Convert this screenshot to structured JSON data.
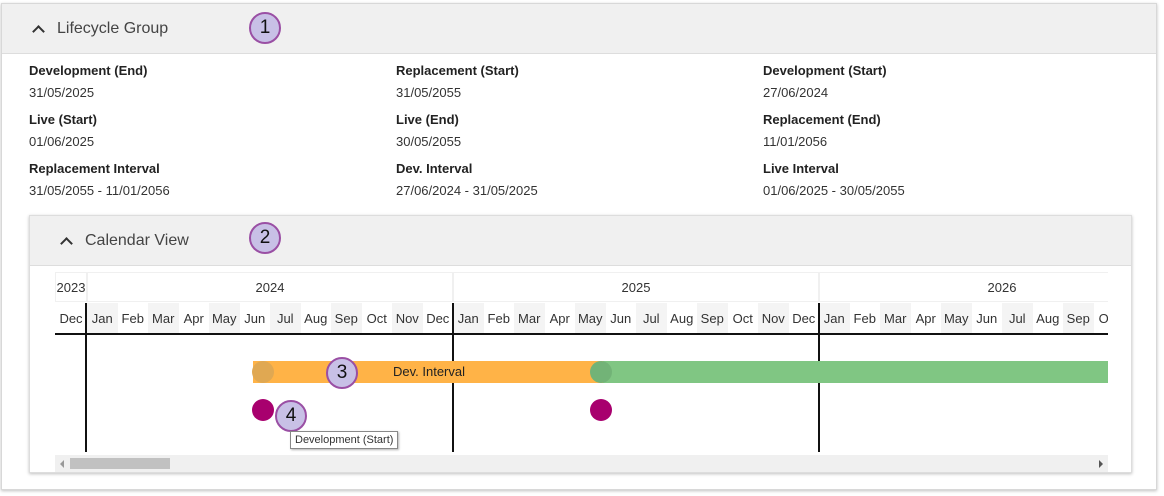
{
  "lifecycle": {
    "title": "Lifecycle Group",
    "fields": [
      {
        "label": "Development (End)",
        "value": "31/05/2025"
      },
      {
        "label": "Replacement (Start)",
        "value": "31/05/2055"
      },
      {
        "label": "Development (Start)",
        "value": "27/06/2024"
      },
      {
        "label": "Live (Start)",
        "value": "01/06/2025"
      },
      {
        "label": "Live (End)",
        "value": "30/05/2055"
      },
      {
        "label": "Replacement (End)",
        "value": "11/01/2056"
      },
      {
        "label": "Replacement Interval",
        "value": "31/05/2055 - 11/01/2056"
      },
      {
        "label": "Dev. Interval",
        "value": "27/06/2024 - 31/05/2025"
      },
      {
        "label": "Live Interval",
        "value": "01/06/2025 - 30/05/2055"
      }
    ]
  },
  "calendar": {
    "title": "Calendar View",
    "years": [
      "2023",
      "2024",
      "2025",
      "2026"
    ],
    "months": [
      "Jan",
      "Feb",
      "Mar",
      "Apr",
      "May",
      "Jun",
      "Jul",
      "Aug",
      "Sep",
      "Oct",
      "Nov",
      "Dec"
    ],
    "bars": [
      {
        "label": "Dev. Interval",
        "color": "#ffb347",
        "handle": "#e0a852"
      },
      {
        "label": "",
        "color": "#80c683",
        "handle": "#72b377"
      }
    ],
    "milestone_color": "#a8006e",
    "tooltip": "Development (Start)"
  },
  "annotations": [
    "1",
    "2",
    "3",
    "4"
  ]
}
